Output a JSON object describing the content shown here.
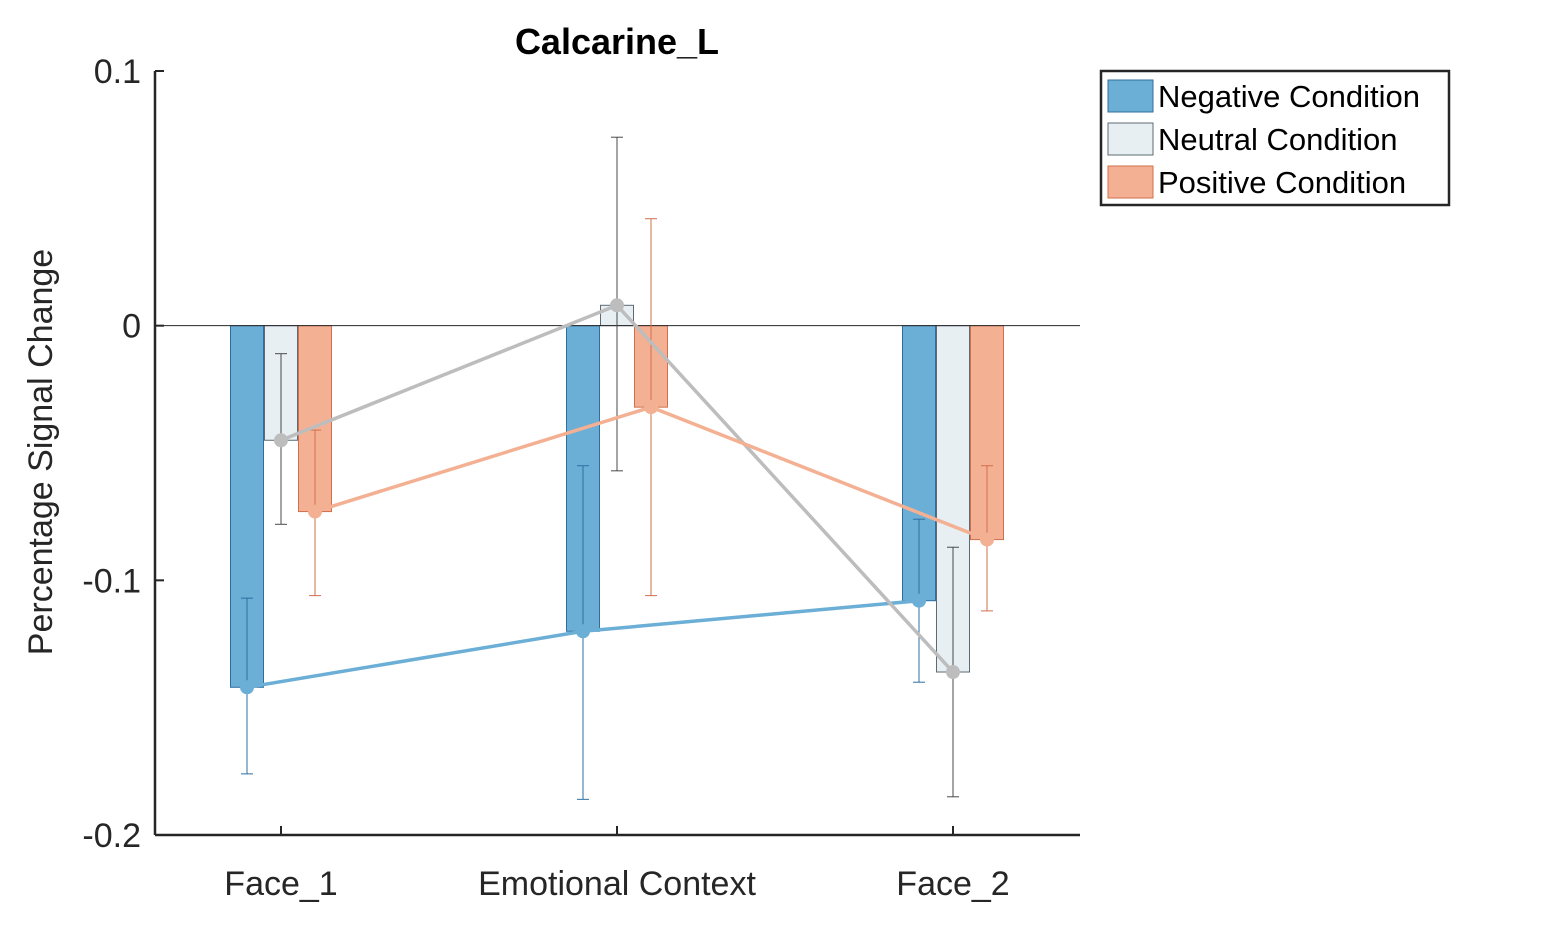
{
  "chart_data": {
    "type": "bar",
    "title": "Calcarine_L",
    "xlabel": "",
    "ylabel": "Percentage Signal Change",
    "ylim": [
      -0.2,
      0.1
    ],
    "yticks": [
      0.1,
      0,
      -0.1,
      -0.2
    ],
    "ytick_labels": [
      "0.1",
      "0",
      "-0.1",
      "-0.2"
    ],
    "categories": [
      "Face_1",
      "Emotional Context",
      "Face_2"
    ],
    "series": [
      {
        "name": "Negative Condition",
        "color": "#6BAED6",
        "values": [
          -0.142,
          -0.12,
          -0.108
        ],
        "error_low": [
          -0.176,
          -0.186,
          -0.14
        ],
        "error_high": [
          -0.107,
          -0.055,
          -0.076
        ],
        "line_color": "#6BAED6"
      },
      {
        "name": "Neutral Condition",
        "color": "#E8EFF3",
        "values": [
          -0.045,
          0.008,
          -0.136
        ],
        "error_low": [
          -0.078,
          -0.057,
          -0.185
        ],
        "error_high": [
          -0.011,
          0.074,
          -0.087
        ],
        "line_color": "#BDBDBD"
      },
      {
        "name": "Positive Condition",
        "color": "#F4B092",
        "values": [
          -0.073,
          -0.032,
          -0.084
        ],
        "error_low": [
          -0.106,
          -0.106,
          -0.112
        ],
        "error_high": [
          -0.041,
          0.042,
          -0.055
        ],
        "line_color": "#F4B092"
      }
    ],
    "legend_position": "outside-top-right",
    "grid": false
  }
}
